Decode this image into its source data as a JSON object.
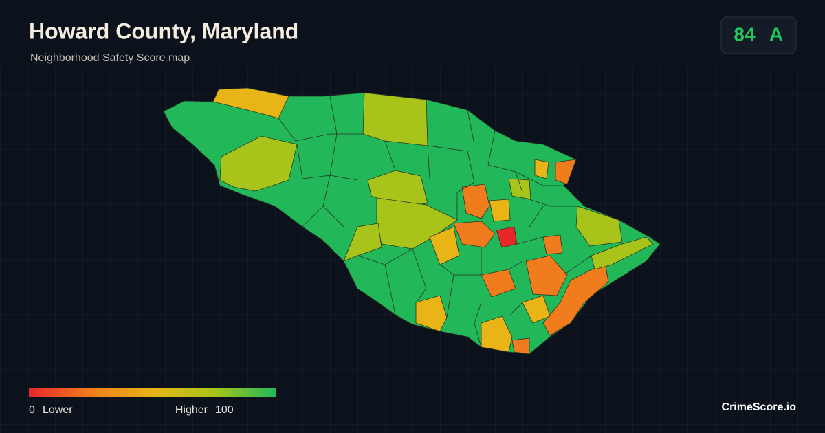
{
  "header": {
    "title": "Howard County, Maryland",
    "subtitle": "Neighborhood Safety Score map"
  },
  "badge": {
    "score": 84,
    "grade": "A"
  },
  "legend": {
    "min": 0,
    "min_label": "Lower",
    "max_label": "Higher",
    "max": 100,
    "colors": [
      "#e8272a",
      "#f07c1e",
      "#e8b416",
      "#a8c41a",
      "#22b85a"
    ]
  },
  "footer": {
    "brand": "CrimeScore.io"
  }
}
